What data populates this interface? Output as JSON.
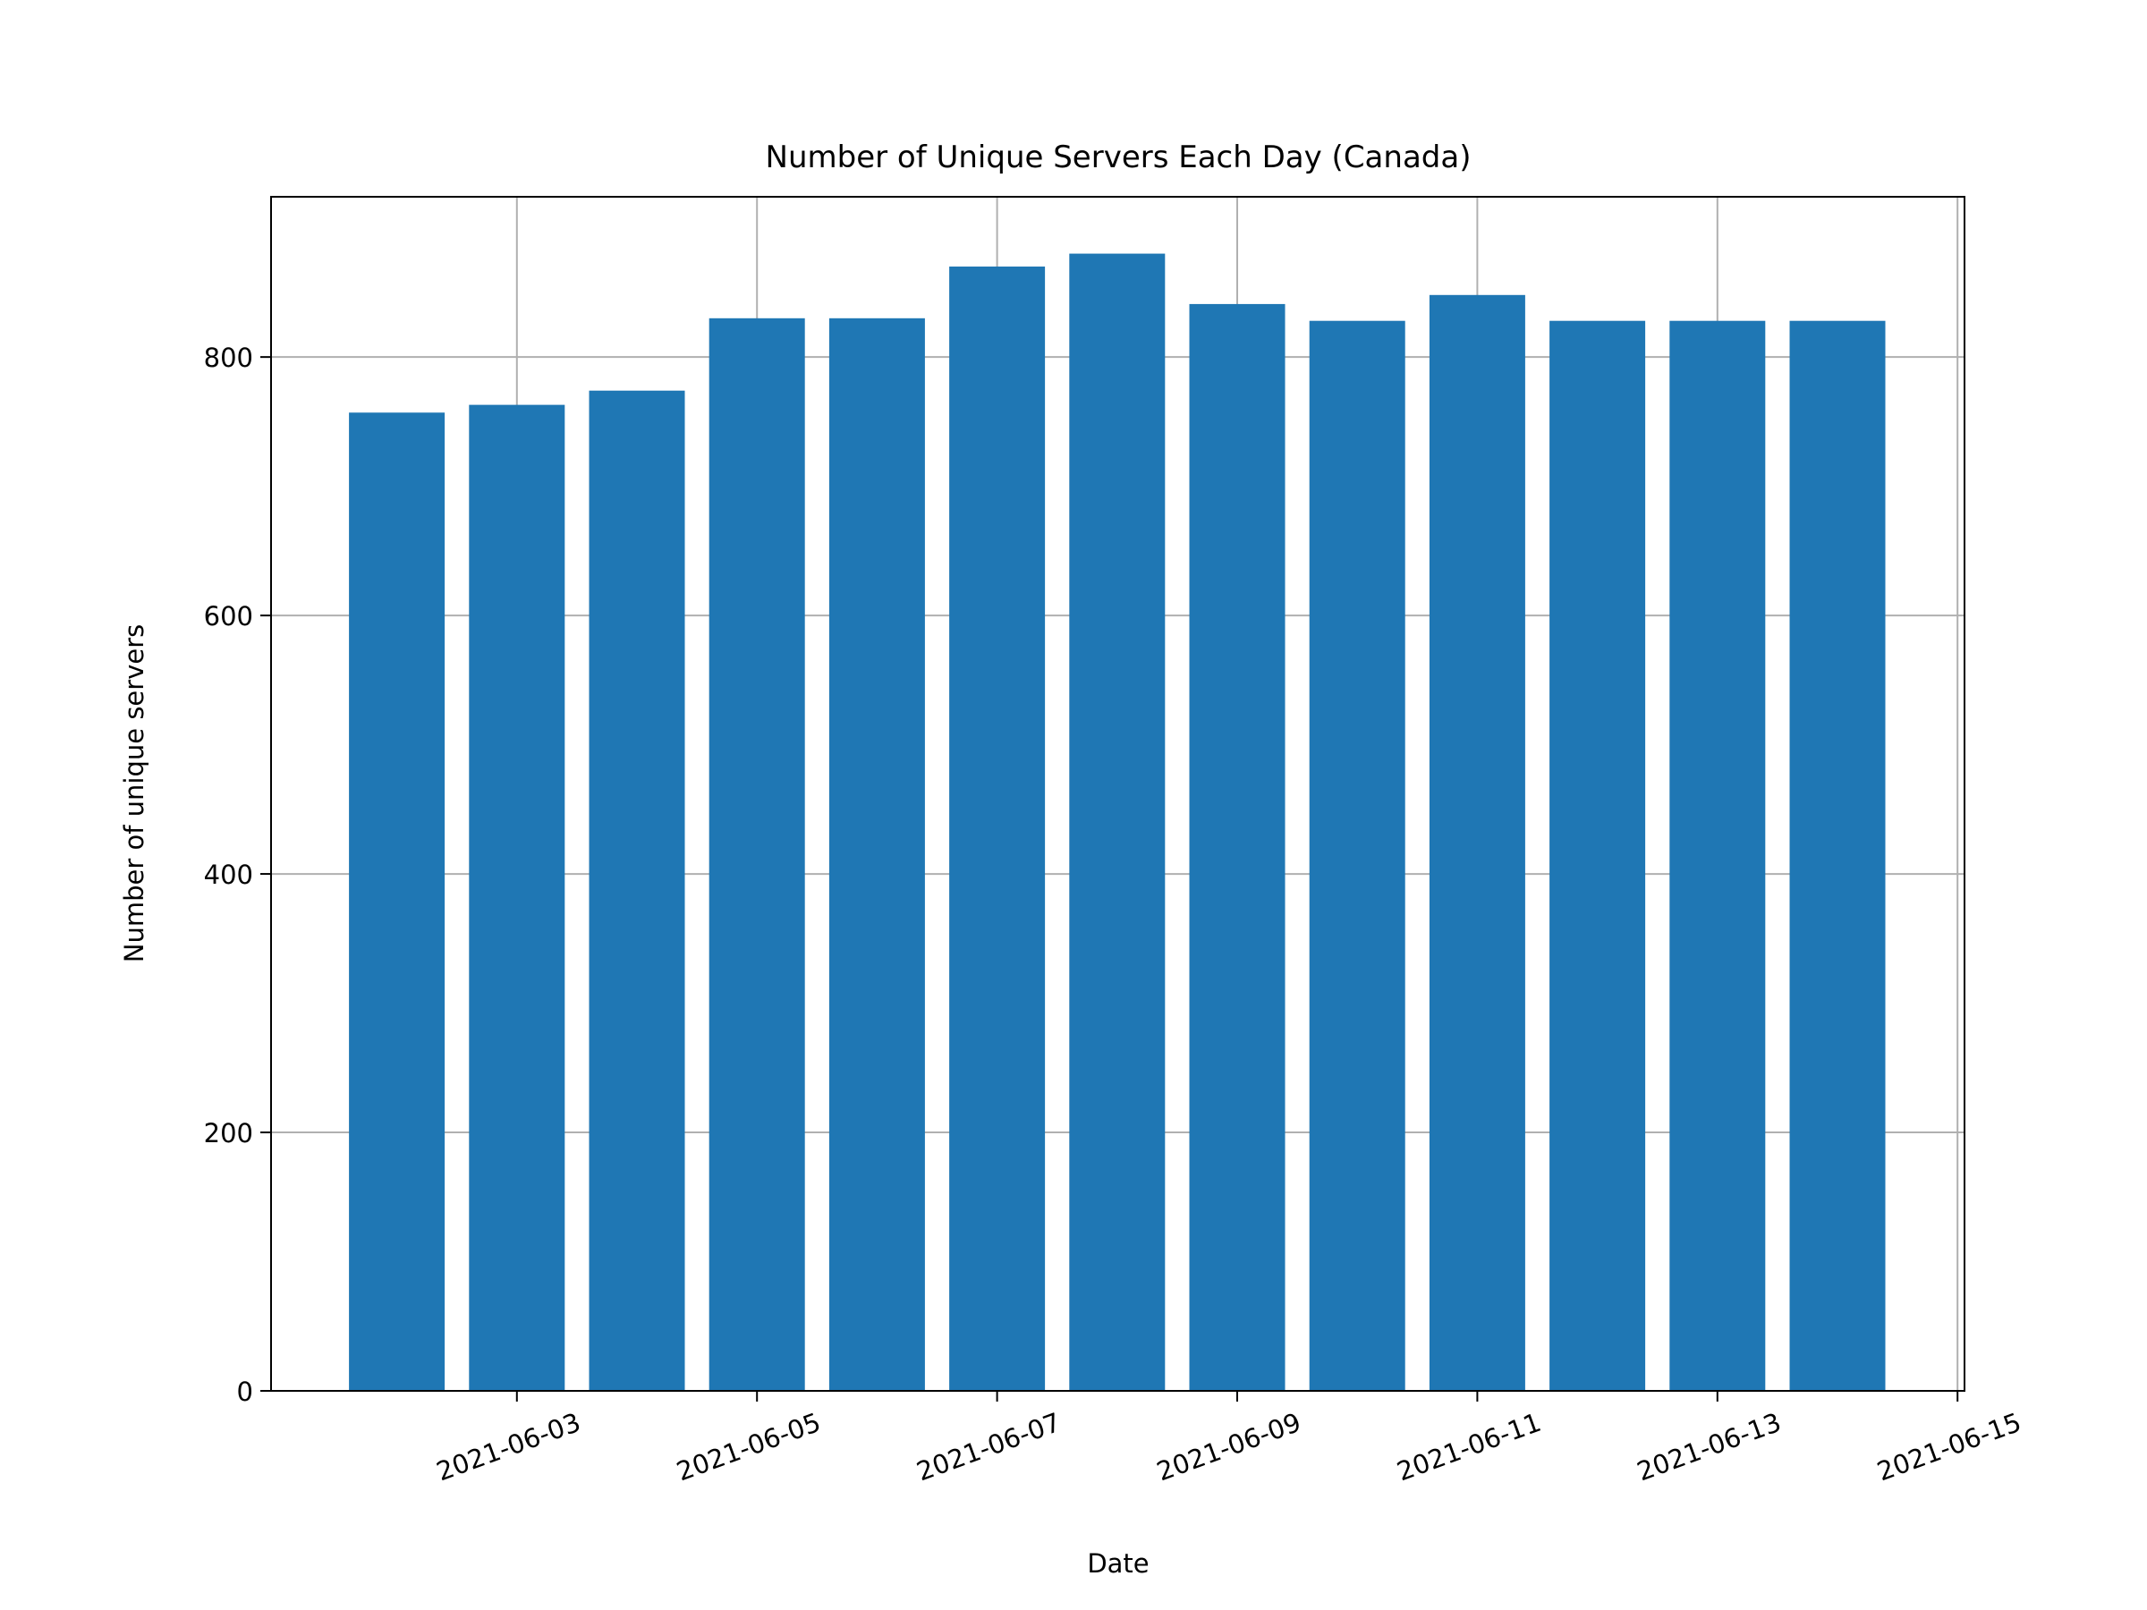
{
  "chart_data": {
    "type": "bar",
    "title": "Number of Unique Servers Each Day (Canada)",
    "xlabel": "Date",
    "ylabel": "Number of unique servers",
    "x": [
      "2021-06-02",
      "2021-06-03",
      "2021-06-04",
      "2021-06-05",
      "2021-06-06",
      "2021-06-07",
      "2021-06-08",
      "2021-06-09",
      "2021-06-10",
      "2021-06-11",
      "2021-06-12",
      "2021-06-13",
      "2021-06-14"
    ],
    "values": [
      757,
      763,
      774,
      830,
      830,
      870,
      880,
      841,
      828,
      848,
      828,
      828,
      828
    ],
    "ylim": [
      0,
      924
    ],
    "yticks": [
      0,
      200,
      400,
      600,
      800
    ],
    "xticks": [
      "2021-06-03",
      "2021-06-05",
      "2021-06-07",
      "2021-06-09",
      "2021-06-11",
      "2021-06-13",
      "2021-06-15"
    ],
    "grid": true,
    "bar_color": "#1f77b4",
    "grid_color": "#b0b0b0"
  }
}
